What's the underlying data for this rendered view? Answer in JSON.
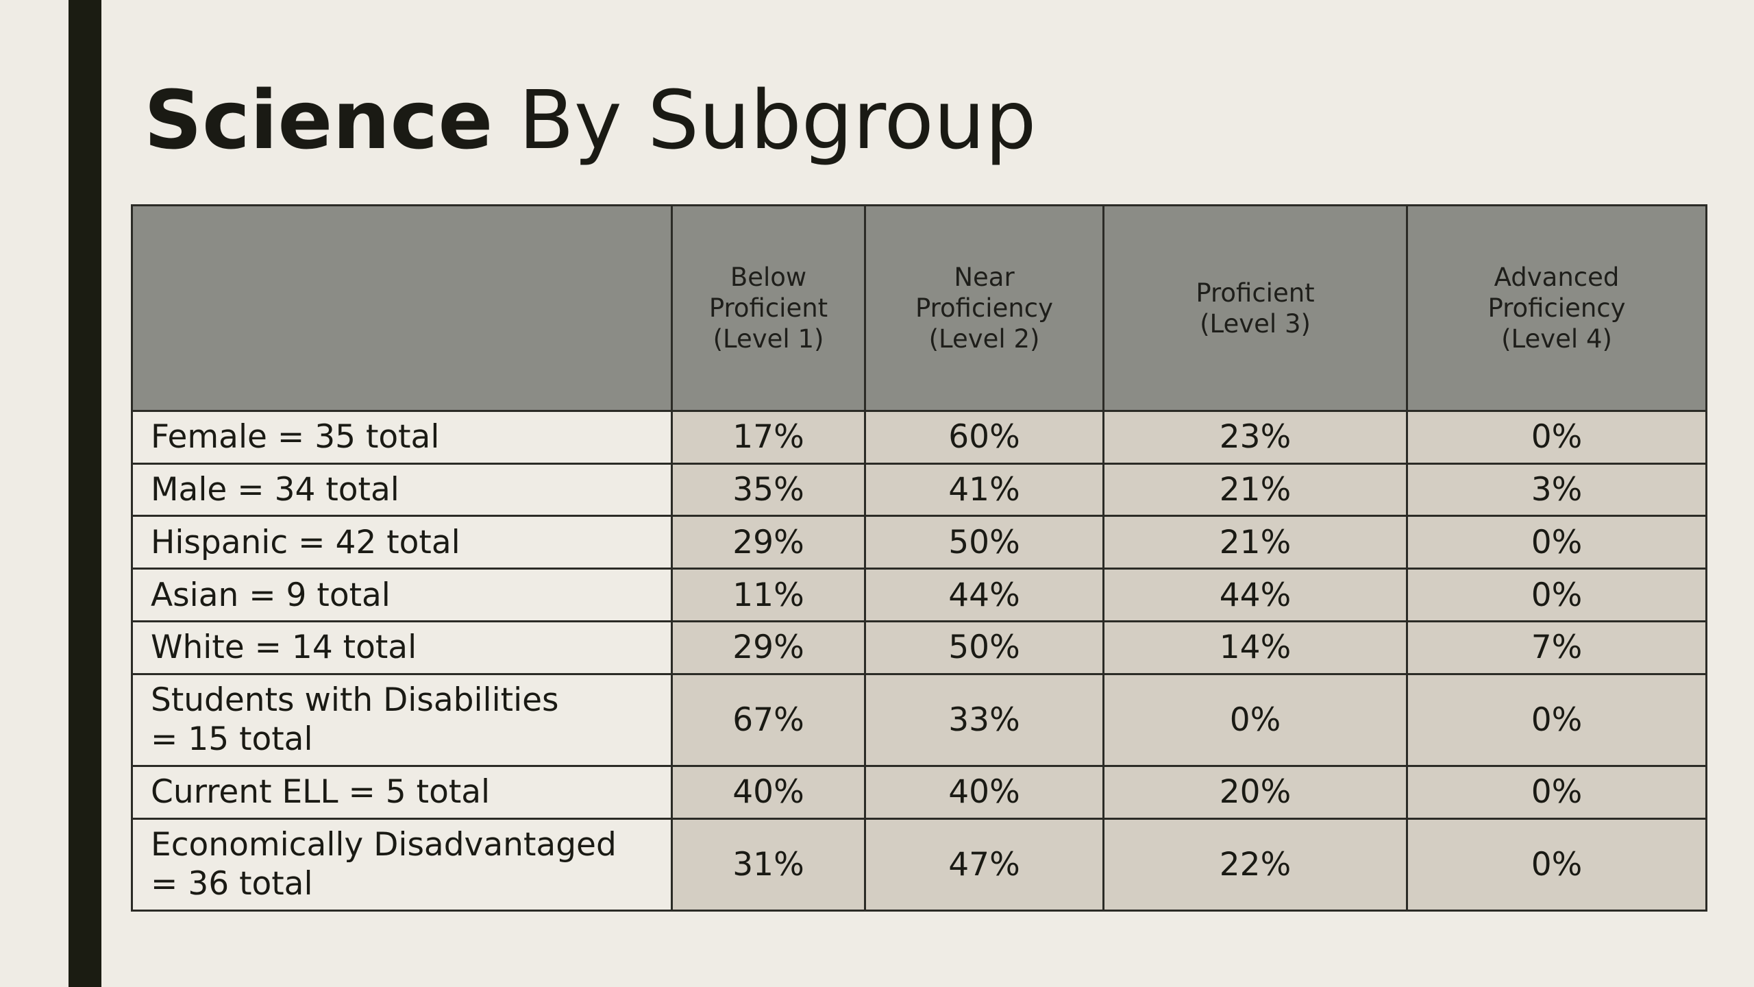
{
  "title": {
    "bold": "Science",
    "rest": " By Subgroup"
  },
  "table": {
    "headers": [
      "",
      "Below\nProficient\n(Level 1)",
      "Near\nProficiency\n(Level 2)",
      "Proficient\n(Level 3)",
      "Advanced\nProficiency\n(Level 4)"
    ],
    "rows": [
      {
        "label": "Female = 35 total",
        "values": [
          "17%",
          "60%",
          "23%",
          "0%"
        ]
      },
      {
        "label": "Male = 34 total",
        "values": [
          "35%",
          "41%",
          "21%",
          "3%"
        ]
      },
      {
        "label": "Hispanic = 42 total",
        "values": [
          "29%",
          "50%",
          "21%",
          "0%"
        ]
      },
      {
        "label": "Asian = 9 total",
        "values": [
          "11%",
          "44%",
          "44%",
          "0%"
        ]
      },
      {
        "label": "White = 14 total",
        "values": [
          "29%",
          "50%",
          "14%",
          "7%"
        ]
      },
      {
        "label": "Students with Disabilities\n= 15 total",
        "values": [
          "67%",
          "33%",
          "0%",
          "0%"
        ]
      },
      {
        "label": "Current ELL =  5 total",
        "values": [
          "40%",
          "40%",
          "20%",
          "0%"
        ]
      },
      {
        "label": "Economically  Disadvantaged\n= 36 total",
        "values": [
          "31%",
          "47%",
          "22%",
          "0%"
        ]
      }
    ]
  }
}
